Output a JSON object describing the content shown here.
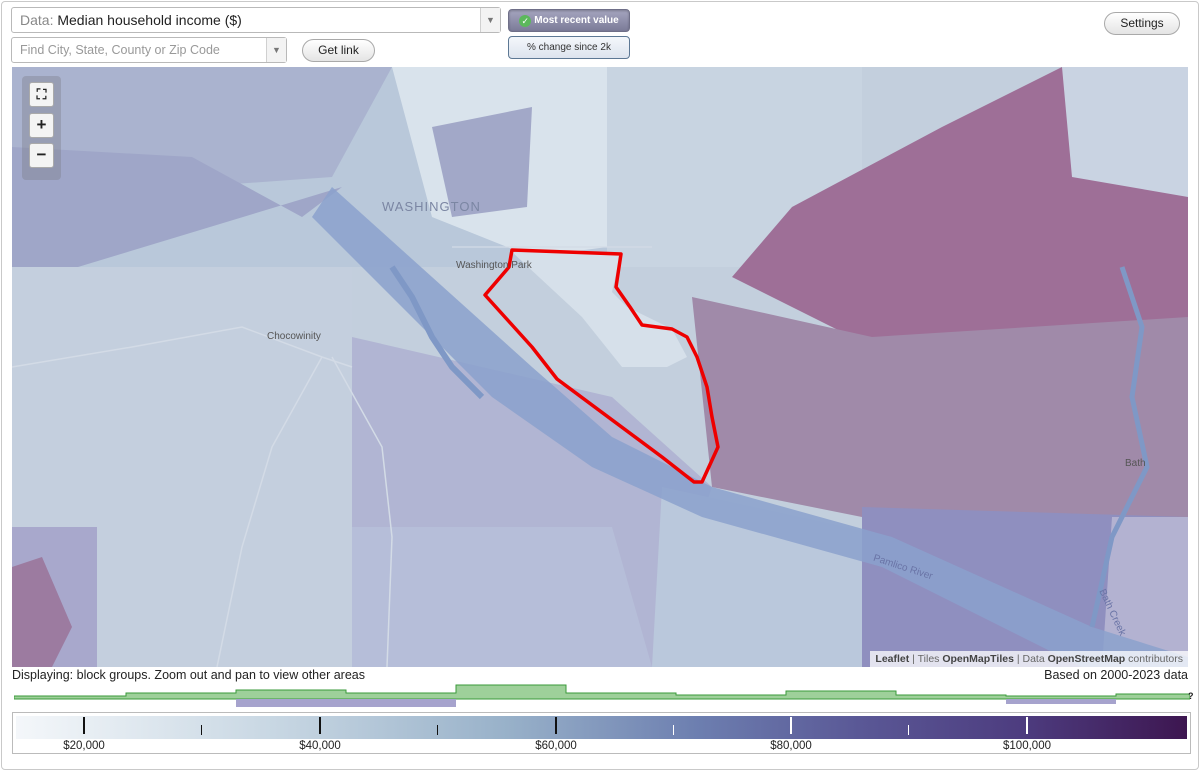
{
  "toolbar": {
    "data_prefix": "Data:",
    "data_value": "Median household income ($)",
    "search_placeholder": "Find City, State, County or Zip Code",
    "get_link_label": "Get link",
    "mode_recent_label": "Most recent value",
    "mode_change_label": "% change since 2k",
    "settings_label": "Settings"
  },
  "map": {
    "labels": {
      "washington": "WASHINGTON",
      "washington_park": "Washington Park",
      "chocowinity": "Chocowinity",
      "bath": "Bath",
      "pamlico_river": "Pamlico River",
      "bath_creek": "Bath Creek"
    },
    "zoom_in": "+",
    "zoom_out": "−",
    "fullscreen_icon": "fullscreen-icon",
    "attribution": {
      "leaflet": "Leaflet",
      "tiles_prefix": "Tiles",
      "tiles": "OpenMapTiles",
      "data_prefix": "Data",
      "osm": "OpenStreetMap",
      "contributors": "contributors"
    },
    "selected_area_color": "#ee0000"
  },
  "status": {
    "displaying": "Displaying: block groups. Zoom out and pan to view other areas",
    "based_on": "Based on 2000-2023 data",
    "help": "?"
  },
  "legend": {
    "labels": [
      "$20,000",
      "$40,000",
      "$60,000",
      "$80,000",
      "$100,000"
    ],
    "gradient_colors": [
      "#f4f7fa",
      "#98b1c9",
      "#5a5896",
      "#3d1650"
    ],
    "histogram_colors": {
      "primary": "#9ed09a",
      "secondary": "#a6a3cd"
    }
  }
}
